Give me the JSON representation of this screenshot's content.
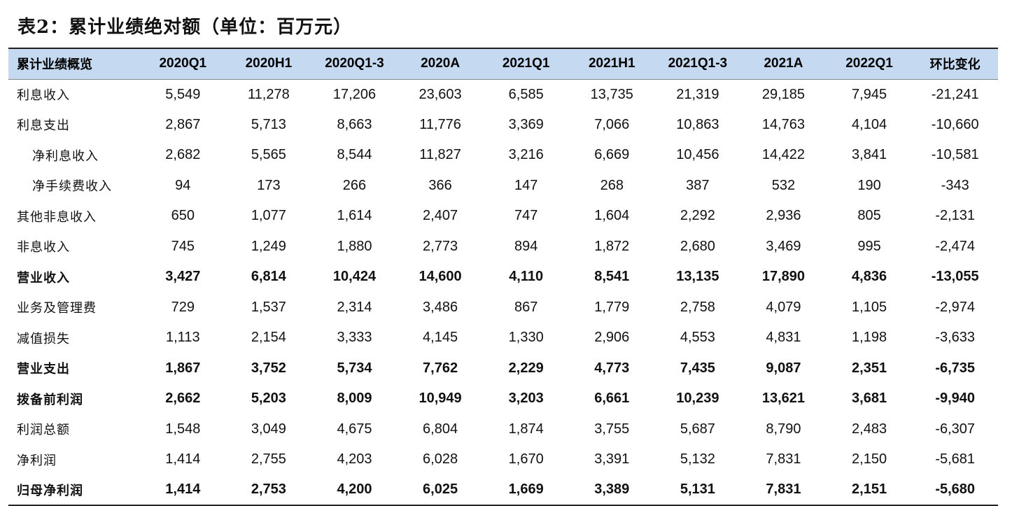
{
  "title": "表2：累计业绩绝对额（单位：百万元）",
  "table": {
    "columns": [
      "累计业绩概览",
      "2020Q1",
      "2020H1",
      "2020Q1-3",
      "2020A",
      "2021Q1",
      "2021H1",
      "2021Q1-3",
      "2021A",
      "2022Q1",
      "环比变化"
    ],
    "rows": [
      {
        "label": "利息收入",
        "values": [
          "5,549",
          "11,278",
          "17,206",
          "23,603",
          "6,585",
          "13,735",
          "21,319",
          "29,185",
          "7,945",
          "-21,241"
        ],
        "bold": false,
        "indent": false
      },
      {
        "label": "利息支出",
        "values": [
          "2,867",
          "5,713",
          "8,663",
          "11,776",
          "3,369",
          "7,066",
          "10,863",
          "14,763",
          "4,104",
          "-10,660"
        ],
        "bold": false,
        "indent": false
      },
      {
        "label": "净利息收入",
        "values": [
          "2,682",
          "5,565",
          "8,544",
          "11,827",
          "3,216",
          "6,669",
          "10,456",
          "14,422",
          "3,841",
          "-10,581"
        ],
        "bold": false,
        "indent": true
      },
      {
        "label": "净手续费收入",
        "values": [
          "94",
          "173",
          "266",
          "366",
          "147",
          "268",
          "387",
          "532",
          "190",
          "-343"
        ],
        "bold": false,
        "indent": true
      },
      {
        "label": "其他非息收入",
        "values": [
          "650",
          "1,077",
          "1,614",
          "2,407",
          "747",
          "1,604",
          "2,292",
          "2,936",
          "805",
          "-2,131"
        ],
        "bold": false,
        "indent": false
      },
      {
        "label": "非息收入",
        "values": [
          "745",
          "1,249",
          "1,880",
          "2,773",
          "894",
          "1,872",
          "2,680",
          "3,469",
          "995",
          "-2,474"
        ],
        "bold": false,
        "indent": false
      },
      {
        "label": "营业收入",
        "values": [
          "3,427",
          "6,814",
          "10,424",
          "14,600",
          "4,110",
          "8,541",
          "13,135",
          "17,890",
          "4,836",
          "-13,055"
        ],
        "bold": true,
        "indent": false
      },
      {
        "label": "业务及管理费",
        "values": [
          "729",
          "1,537",
          "2,314",
          "3,486",
          "867",
          "1,779",
          "2,758",
          "4,079",
          "1,105",
          "-2,974"
        ],
        "bold": false,
        "indent": false
      },
      {
        "label": "减值损失",
        "values": [
          "1,113",
          "2,154",
          "3,333",
          "4,145",
          "1,330",
          "2,906",
          "4,553",
          "4,831",
          "1,198",
          "-3,633"
        ],
        "bold": false,
        "indent": false
      },
      {
        "label": "营业支出",
        "values": [
          "1,867",
          "3,752",
          "5,734",
          "7,762",
          "2,229",
          "4,773",
          "7,435",
          "9,087",
          "2,351",
          "-6,735"
        ],
        "bold": true,
        "indent": false
      },
      {
        "label": "拨备前利润",
        "values": [
          "2,662",
          "5,203",
          "8,009",
          "10,949",
          "3,203",
          "6,661",
          "10,239",
          "13,621",
          "3,681",
          "-9,940"
        ],
        "bold": true,
        "indent": false
      },
      {
        "label": "利润总额",
        "values": [
          "1,548",
          "3,049",
          "4,675",
          "6,804",
          "1,874",
          "3,755",
          "5,687",
          "8,790",
          "2,483",
          "-6,307"
        ],
        "bold": false,
        "indent": false
      },
      {
        "label": "净利润",
        "values": [
          "1,414",
          "2,755",
          "4,203",
          "6,028",
          "1,670",
          "3,391",
          "5,132",
          "7,831",
          "2,150",
          "-5,681"
        ],
        "bold": false,
        "indent": false
      },
      {
        "label": "归母净利润",
        "values": [
          "1,414",
          "2,753",
          "4,200",
          "6,025",
          "1,669",
          "3,389",
          "5,131",
          "7,831",
          "2,151",
          "-5,680"
        ],
        "bold": true,
        "indent": false
      }
    ]
  }
}
